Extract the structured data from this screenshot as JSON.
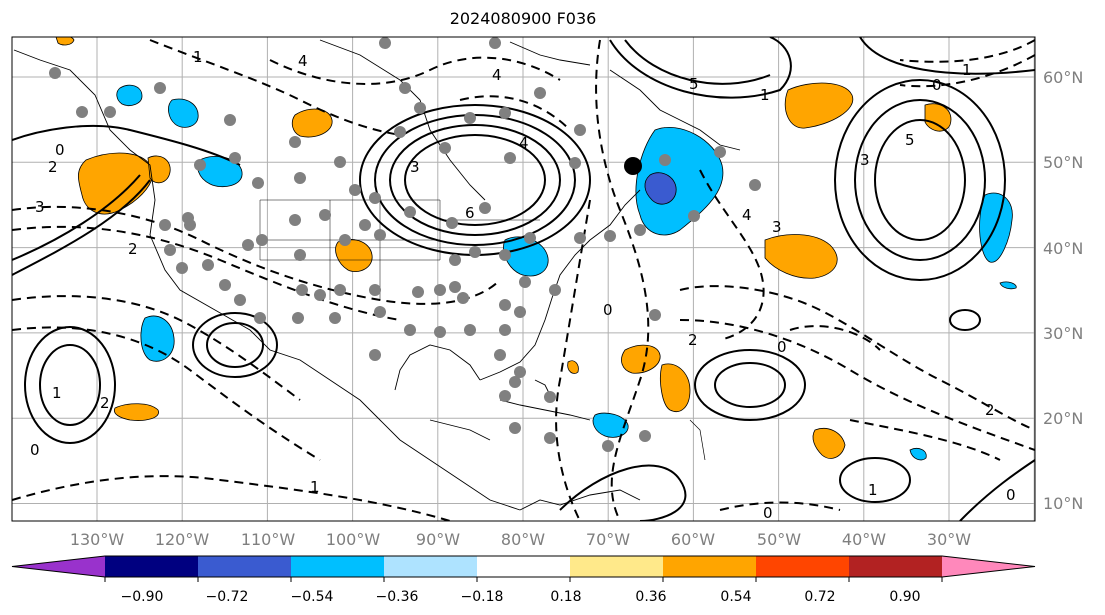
{
  "title": "2024080900 F036",
  "lon_labels": [
    "130°W",
    "120°W",
    "110°W",
    "100°W",
    "90°W",
    "80°W",
    "70°W",
    "60°W",
    "50°W",
    "40°W",
    "30°W"
  ],
  "lat_labels": [
    "60°N",
    "50°N",
    "40°N",
    "30°N",
    "20°N",
    "10°N"
  ],
  "colorbar": {
    "colors": [
      "#9932cc",
      "#000080",
      "#3a5bd0",
      "#00bfff",
      "#aee3ff",
      "#ffffff",
      "#ffe98a",
      "#ffa500",
      "#ff4500",
      "#b22222",
      "#ff88bb"
    ],
    "tick_labels": [
      "−0.90",
      "−0.72",
      "−0.54",
      "−0.36",
      "−0.18",
      "0.18",
      "0.36",
      "0.54",
      "0.72",
      "0.90"
    ]
  },
  "contour_labels": [
    "0",
    "2",
    "3",
    "4",
    "1",
    "5",
    "6",
    "3",
    "4",
    "2",
    "0",
    "1",
    "2",
    "0",
    "5",
    "3",
    "4",
    "1",
    "0",
    "2",
    "0",
    "1",
    "0",
    "2",
    "1",
    "0",
    "3",
    "4",
    "1"
  ]
}
